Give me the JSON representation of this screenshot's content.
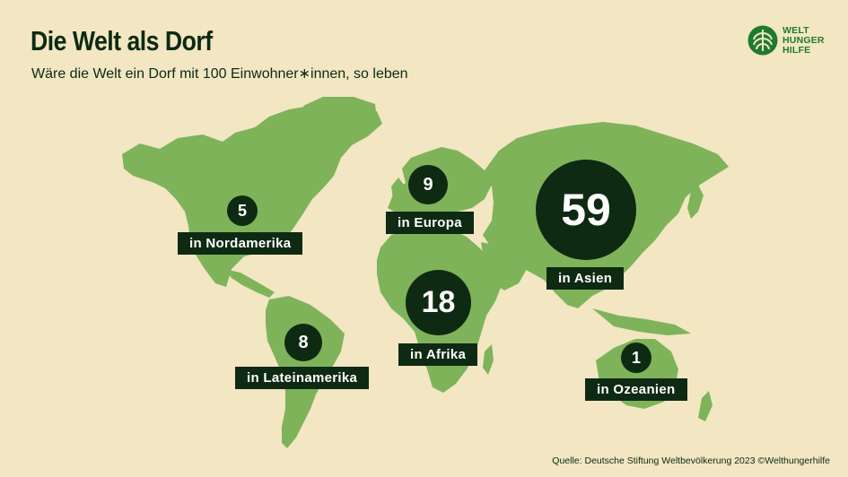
{
  "header": {
    "title": "Die Welt als Dorf",
    "subtitle": "Wäre die Welt ein Dorf mit 100 Einwohner∗innen, so leben"
  },
  "logo": {
    "icon": "globe-leaf-icon",
    "lines": [
      "WELT",
      "HUNGER",
      "HILFE"
    ]
  },
  "regions": {
    "nordamerika": {
      "value": "5",
      "label": "in Nordamerika"
    },
    "europa": {
      "value": "9",
      "label": "in Europa"
    },
    "asien": {
      "value": "59",
      "label": "in Asien"
    },
    "lateinamerika": {
      "value": "8",
      "label": "in Lateinamerika"
    },
    "afrika": {
      "value": "18",
      "label": "in Afrika"
    },
    "ozeanien": {
      "value": "1",
      "label": "in Ozeanien"
    }
  },
  "source": "Quelle: Deutsche Stiftung Weltbevölkerung 2023 ©Welthungerhilfe",
  "colors": {
    "background": "#f2e6c3",
    "land": "#7fb35a",
    "dark": "#0f2a13",
    "brand": "#1f7a2e"
  }
}
